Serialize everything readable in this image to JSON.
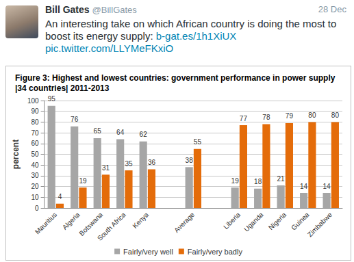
{
  "tweet": {
    "name": "Bill Gates",
    "handle": "@BillGates",
    "date": "28 Dec",
    "text": "An interesting take on which African country is doing the most to boost its energy supply:",
    "link": "b-gat.es/1h1XiUX",
    "pic_link": "pic.twitter.com/LLYMeFKxiO"
  },
  "chart_data": {
    "type": "bar",
    "title": "Figure 3: Highest and lowest countries: government performance in power supply |34 countries| 2011-2013",
    "y_label": "percent",
    "categories": [
      "Mauritius",
      "Algeria",
      "Botswana",
      "South Africa",
      "Kenya",
      null,
      "Average",
      null,
      "Liberia",
      "Uganda",
      "Nigeria",
      "Guinea",
      "Zimbabwe"
    ],
    "series": [
      {
        "name": "Fairly/very well",
        "color": "#a6a6a6",
        "values": [
          95,
          76,
          65,
          64,
          62,
          null,
          38,
          null,
          19,
          18,
          21,
          14,
          14
        ]
      },
      {
        "name": "Fairly/very badly",
        "color": "#e46c0a",
        "values": [
          4,
          19,
          31,
          35,
          36,
          null,
          55,
          null,
          77,
          78,
          79,
          80,
          80
        ]
      }
    ],
    "ylim": [
      0,
      100
    ],
    "yticks": [
      0,
      10,
      20,
      30,
      40,
      50,
      60,
      70,
      80,
      90,
      100
    ],
    "grid": true,
    "legend": "bottom",
    "data_labels": true
  }
}
